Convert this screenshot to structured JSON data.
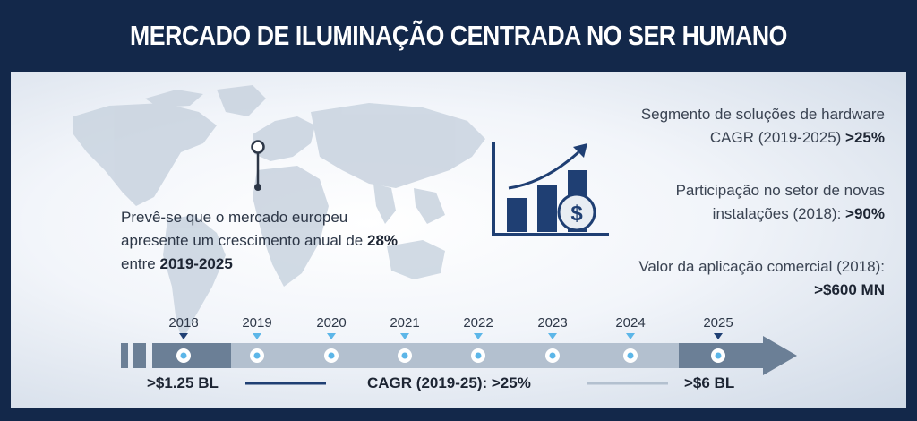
{
  "title": "MERCADO DE ILUMINAÇÃO CENTRADA NO SER HUMANO",
  "europe": {
    "line1": "Prevê-se que o mercado europeu",
    "line2_prefix": "apresente um crescimento anual de ",
    "line2_value": "28%",
    "line3_prefix": "entre ",
    "line3_value": "2019-2025"
  },
  "stats": [
    {
      "line1": "Segmento de soluções de hardware",
      "line2": "CAGR (2019-2025) ",
      "value": ">25%"
    },
    {
      "line1": "Participação no setor de novas",
      "line2": "instalações (2018): ",
      "value": ">90%"
    },
    {
      "line1": "Valor da aplicação comercial (2018):",
      "line2": "",
      "value": ">$600 MN"
    }
  ],
  "timeline": {
    "years": [
      "2018",
      "2019",
      "2020",
      "2021",
      "2022",
      "2023",
      "2024",
      "2025"
    ],
    "start_value": ">$1.25 BL",
    "cagr": "CAGR (2019-25): >25%",
    "end_value": ">$6 BL"
  },
  "icons": {
    "chart": "growth-chart-dollar-icon",
    "pin": "location-pin-icon",
    "map": "world-map-icon"
  },
  "colors": {
    "navy": "#13284a",
    "accent": "#1f3f73",
    "timeline_dark": "#6b7f96",
    "timeline_light": "#b3c0cf",
    "dot": "#5cb6e8"
  }
}
